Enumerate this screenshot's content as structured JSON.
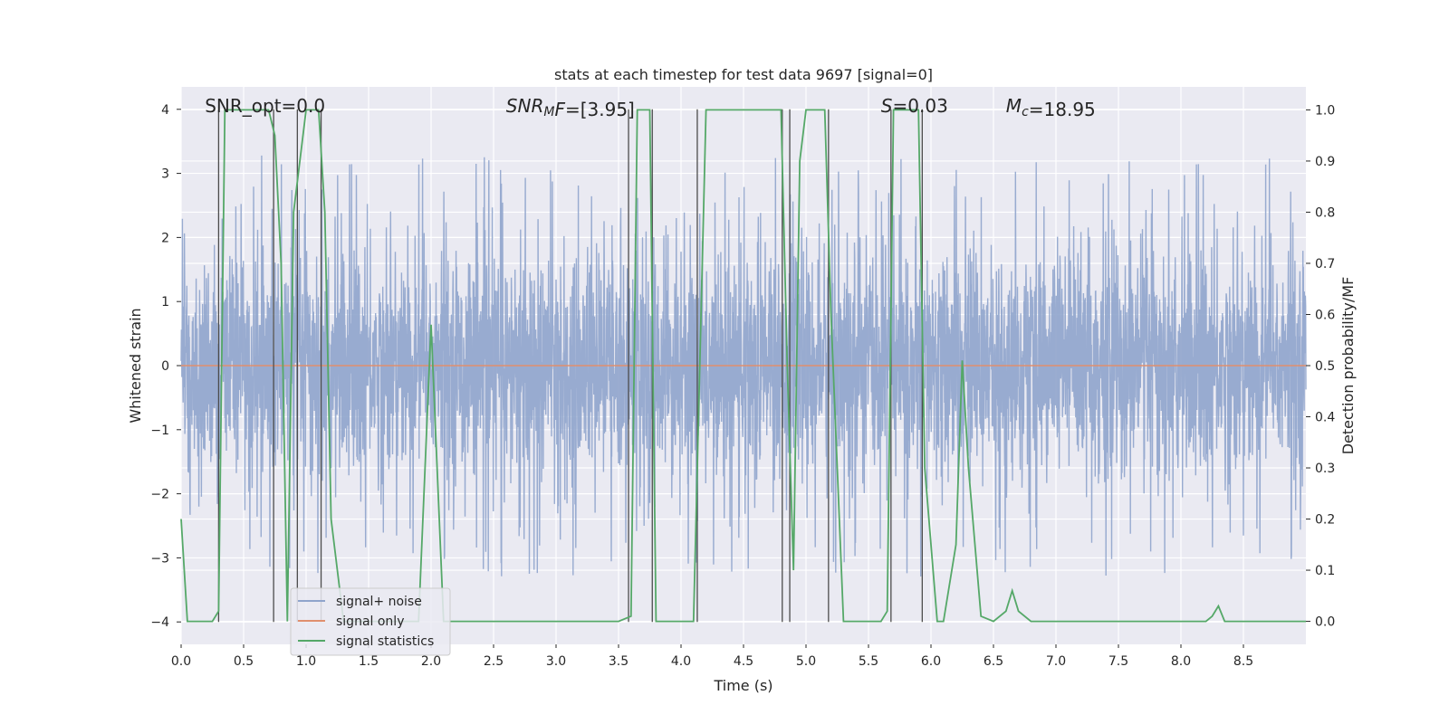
{
  "chart_data": {
    "type": "line",
    "title": "stats at each timestep for test data 9697 [signal=0]",
    "xlabel": "Time (s)",
    "ylabel": "Whitened strain",
    "y2label": "Detection probability/MF",
    "xlim": [
      0,
      9.0
    ],
    "ylim": [
      -4.35,
      4.35
    ],
    "y2lim": [
      -0.045,
      1.045
    ],
    "xticks": [
      0.0,
      0.5,
      1.0,
      1.5,
      2.0,
      2.5,
      3.0,
      3.5,
      4.0,
      4.5,
      5.0,
      5.5,
      6.0,
      6.5,
      7.0,
      7.5,
      8.0,
      8.5
    ],
    "xtick_labels": [
      "0.0",
      "0.5",
      "1.0",
      "1.5",
      "2.0",
      "2.5",
      "3.0",
      "3.5",
      "4.0",
      "4.5",
      "5.0",
      "5.5",
      "6.0",
      "6.5",
      "7.0",
      "7.5",
      "8.0",
      "8.5"
    ],
    "yticks": [
      -4,
      -3,
      -2,
      -1,
      0,
      1,
      2,
      3,
      4
    ],
    "ytick_labels": [
      "−4",
      "−3",
      "−2",
      "−1",
      "0",
      "1",
      "2",
      "3",
      "4"
    ],
    "y2ticks": [
      0.0,
      0.1,
      0.2,
      0.3,
      0.4,
      0.5,
      0.6,
      0.7,
      0.8,
      0.9,
      1.0
    ],
    "y2tick_labels": [
      "0.0",
      "0.1",
      "0.2",
      "0.3",
      "0.4",
      "0.5",
      "0.6",
      "0.7",
      "0.8",
      "0.9",
      "1.0"
    ],
    "grid": true,
    "legend_position": "lower-left",
    "annotations": [
      {
        "id": "snr-opt",
        "parts": [
          {
            "t": "SNR_opt=0.0",
            "i": false
          }
        ],
        "x": 0.19
      },
      {
        "id": "snr-mf",
        "parts": [
          {
            "t": "SNR",
            "i": true
          },
          {
            "t": "M",
            "i": true,
            "sub": true
          },
          {
            "t": "F",
            "i": true
          },
          {
            "t": "=[3.95]",
            "i": false
          }
        ],
        "x": 2.6
      },
      {
        "id": "s-value",
        "parts": [
          {
            "t": "S",
            "i": true
          },
          {
            "t": "=0.03",
            "i": false
          }
        ],
        "x": 5.6
      },
      {
        "id": "chirp-mass",
        "parts": [
          {
            "t": "M",
            "i": true
          },
          {
            "t": "c",
            "i": true,
            "sub": true
          },
          {
            "t": "=18.95",
            "i": false
          }
        ],
        "x": 6.6
      }
    ],
    "series": [
      {
        "name": "signal+ noise",
        "color": "#8fa4cc",
        "kind": "noise",
        "sample_rate": 500,
        "envelope_y": [
          -1.5,
          1.5
        ],
        "peaks_y": [
          3.6,
          -3.9
        ]
      },
      {
        "name": "signal only",
        "color": "#e08f6e",
        "x": [
          0.0,
          9.0
        ],
        "y": [
          0.0,
          0.0
        ]
      },
      {
        "name": "signal statistics",
        "color": "#55a868",
        "axis": "right",
        "x": [
          0.0,
          0.05,
          0.25,
          0.3,
          0.35,
          0.6,
          0.7,
          0.75,
          0.8,
          0.85,
          0.9,
          1.0,
          1.1,
          1.15,
          1.2,
          1.3,
          1.4,
          1.7,
          1.9,
          2.0,
          2.1,
          2.2,
          3.5,
          3.6,
          3.65,
          3.75,
          3.8,
          4.0,
          4.1,
          4.15,
          4.2,
          4.3,
          4.8,
          4.85,
          4.9,
          4.95,
          5.0,
          5.05,
          5.15,
          5.2,
          5.3,
          5.6,
          5.65,
          5.7,
          5.75,
          5.9,
          5.95,
          6.05,
          6.1,
          6.2,
          6.25,
          6.3,
          6.4,
          6.5,
          6.6,
          6.65,
          6.7,
          6.8,
          8.0,
          8.2,
          8.25,
          8.3,
          8.35,
          8.5,
          9.0
        ],
        "y": [
          0.2,
          0.0,
          0.0,
          0.02,
          1.0,
          1.0,
          1.0,
          0.95,
          0.7,
          0.0,
          0.8,
          1.0,
          1.0,
          0.8,
          0.2,
          0.0,
          0.0,
          0.0,
          0.0,
          0.58,
          0.0,
          0.0,
          0.0,
          0.01,
          1.0,
          1.0,
          0.0,
          0.0,
          0.0,
          0.5,
          1.0,
          1.0,
          1.0,
          0.5,
          0.1,
          0.9,
          1.0,
          1.0,
          1.0,
          0.6,
          0.0,
          0.0,
          0.02,
          1.0,
          1.0,
          1.0,
          0.3,
          0.0,
          0.0,
          0.15,
          0.51,
          0.3,
          0.01,
          0.0,
          0.02,
          0.06,
          0.02,
          0.0,
          0.0,
          0.0,
          0.01,
          0.03,
          0.0,
          0.0,
          0.0
        ]
      }
    ],
    "vertical_markers": [
      {
        "x": 0.3,
        "top": 4.0
      },
      {
        "x": 0.74,
        "top": 4.0
      },
      {
        "x": 0.93,
        "top": 4.0
      },
      {
        "x": 1.12,
        "top": 4.0
      },
      {
        "x": 3.58,
        "top": 4.0
      },
      {
        "x": 3.77,
        "top": 4.0
      },
      {
        "x": 4.13,
        "top": 4.0
      },
      {
        "x": 4.81,
        "top": 4.0
      },
      {
        "x": 4.87,
        "top": 4.0
      },
      {
        "x": 5.18,
        "top": 4.0
      },
      {
        "x": 5.68,
        "top": 4.0
      },
      {
        "x": 5.93,
        "top": 4.0
      }
    ]
  }
}
